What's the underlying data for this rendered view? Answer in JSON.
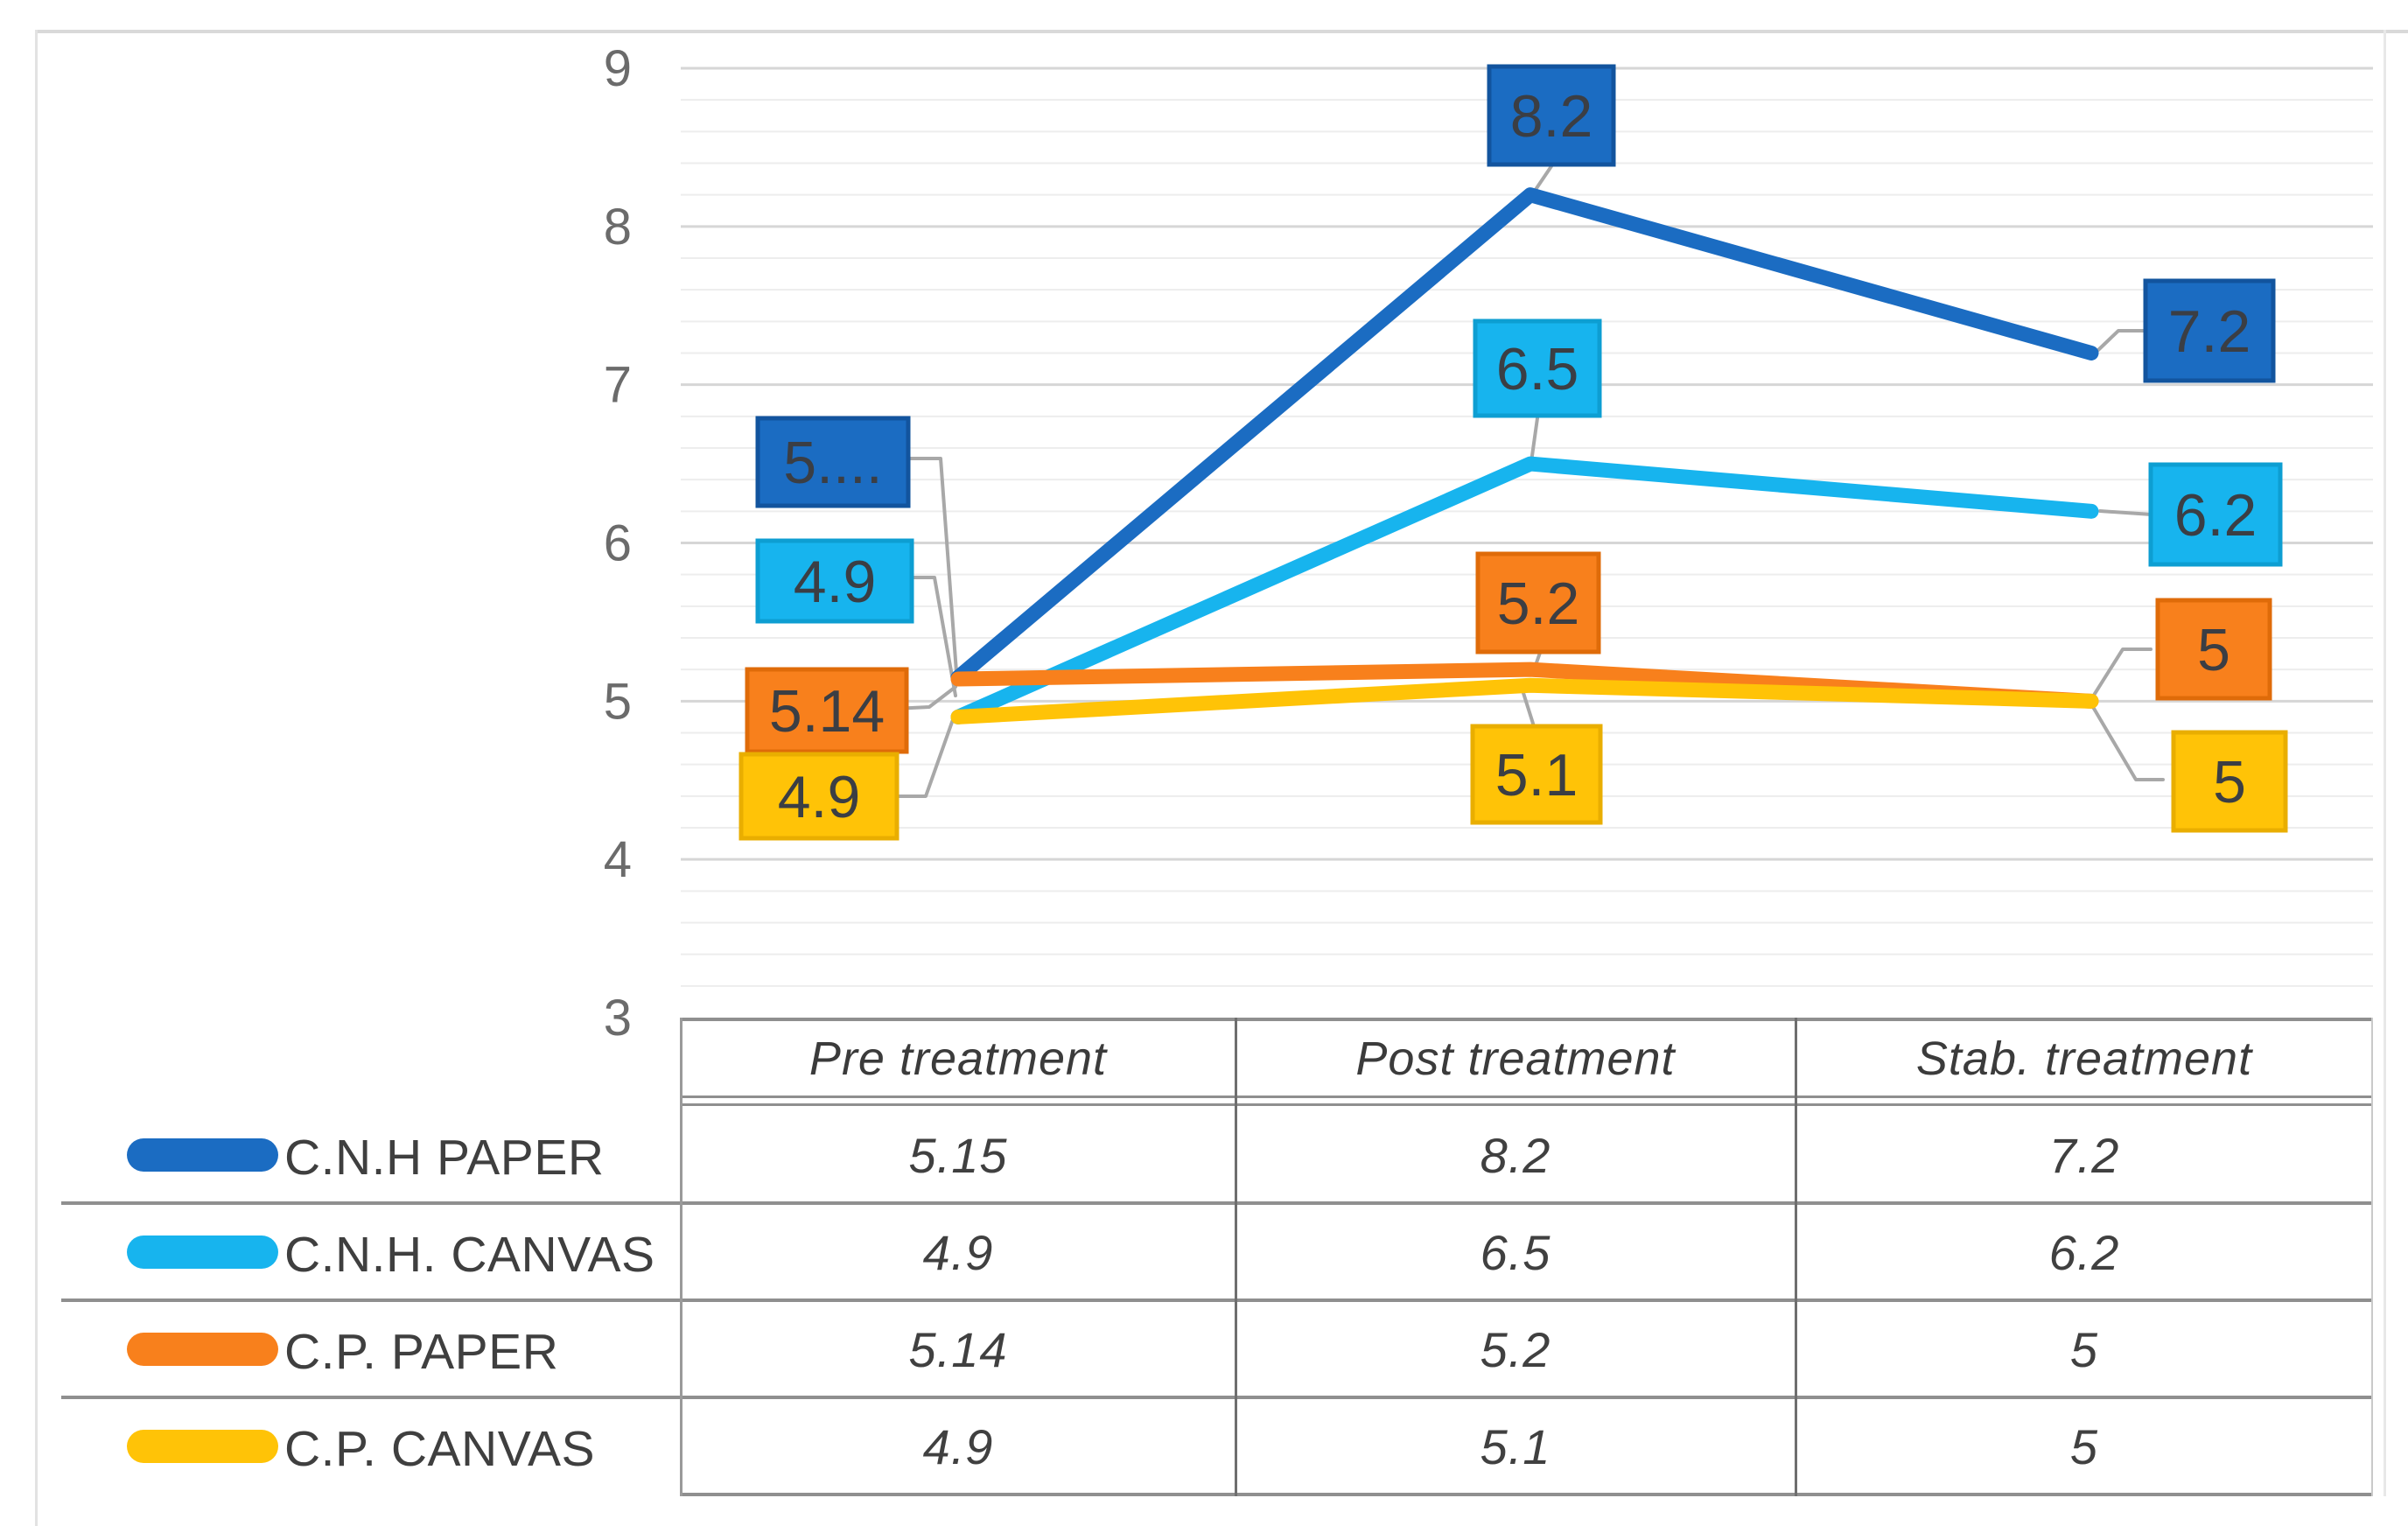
{
  "chart_data": {
    "type": "line",
    "title": "",
    "categories": [
      "Pre treatment",
      "Post treatment",
      "Stab. treatment"
    ],
    "series": [
      {
        "name": "C.N.H PAPER",
        "color": "#1b6cc2",
        "border_color": "#12549e",
        "values": [
          5.15,
          8.2,
          7.2
        ],
        "point_labels": [
          "5....",
          "8.2",
          "7.2"
        ]
      },
      {
        "name": "C.N.H. CANVAS",
        "color": "#17b4ee",
        "border_color": "#0d9ed2",
        "values": [
          4.9,
          6.5,
          6.2
        ],
        "point_labels": [
          "4.9",
          "6.5",
          "6.2"
        ]
      },
      {
        "name": "C.P. PAPER",
        "color": "#f8801c",
        "border_color": "#df6b09",
        "values": [
          5.14,
          5.2,
          5
        ],
        "point_labels": [
          "5.14",
          "5.2",
          "5"
        ]
      },
      {
        "name": "C.P. CANVAS",
        "color": "#ffc307",
        "border_color": "#e9ae00",
        "values": [
          4.9,
          5.1,
          5
        ],
        "point_labels": [
          "4.9",
          "5.1",
          "5"
        ]
      }
    ],
    "y_axis": {
      "min": 3,
      "max": 9,
      "major_step": 1,
      "minor_step": 0.2,
      "tick_labels": [
        "9",
        "8",
        "7",
        "6",
        "5",
        "4",
        "3"
      ]
    },
    "grid": true,
    "legend_position": "table-left",
    "layout_hints": {
      "data_table_shown": true,
      "leader_lines": true
    },
    "colors": {
      "leader_line": "#a8a8a8",
      "gridline_major": "#d6d6d6",
      "gridline_minor": "#ededed",
      "table_line": "#8f8f8f",
      "tick_text": "#6b6b6b",
      "label_text": "#3b3e44"
    }
  }
}
